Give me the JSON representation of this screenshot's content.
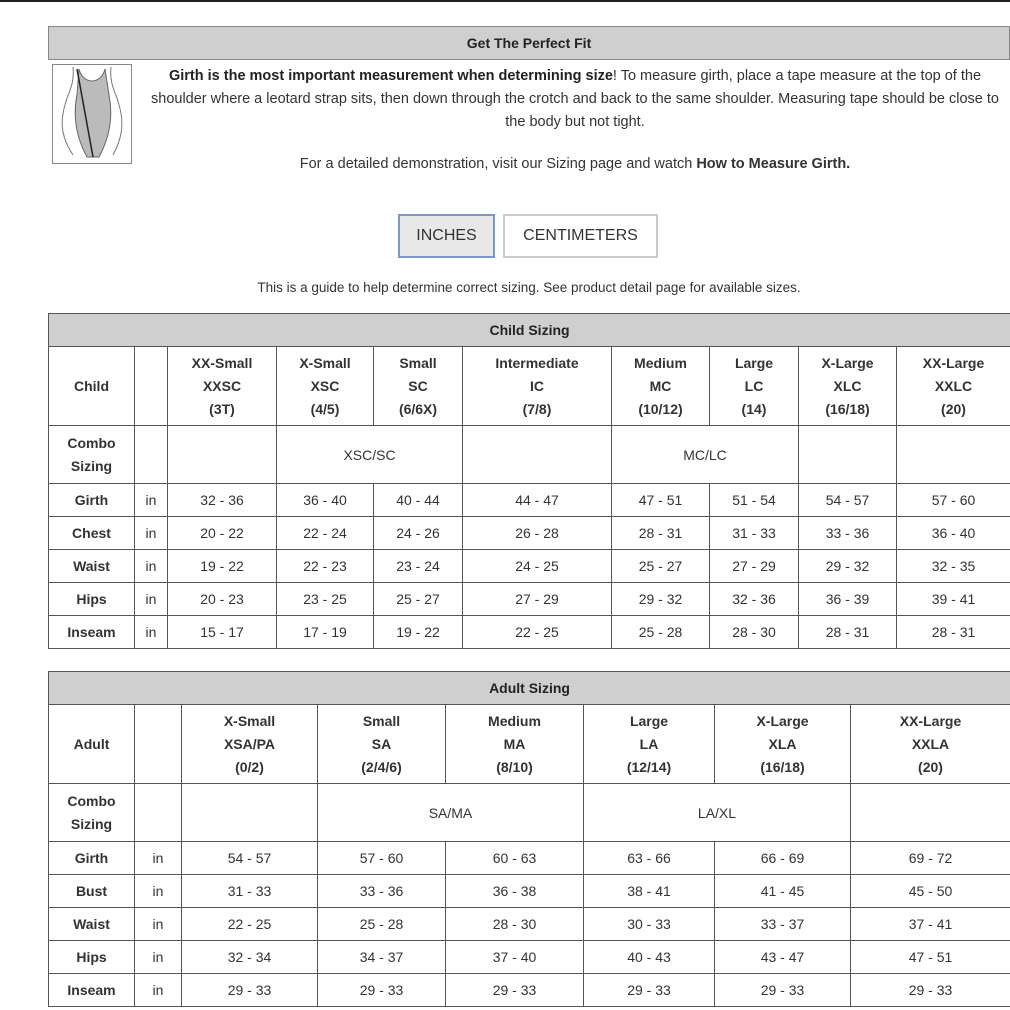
{
  "fit": {
    "title": "Get The Perfect Fit",
    "intro_bold": "Girth is the most important measurement when determining size",
    "intro_rest": "! To measure girth, place a tape measure at the top of the shoulder where a leotard strap sits, then down through the crotch and back to the same shoulder. Measuring tape should be close to the body but not tight.",
    "demo_text": "For a detailed demonstration, visit our Sizing page and watch ",
    "demo_link": "How to Measure Girth."
  },
  "units": {
    "inches": "INCHES",
    "centimeters": "CENTIMETERS",
    "selected": "INCHES"
  },
  "guide": "This is a guide to help determine correct sizing. See product detail page for available sizes.",
  "child": {
    "title": "Child Sizing",
    "corner": "Child",
    "sizes": [
      [
        "XX-Small",
        "XXSC",
        "(3T)"
      ],
      [
        "X-Small",
        "XSC",
        "(4/5)"
      ],
      [
        "Small",
        "SC",
        "(6/6X)"
      ],
      [
        "Intermediate",
        "IC",
        "(7/8)"
      ],
      [
        "Medium",
        "MC",
        "(10/12)"
      ],
      [
        "Large",
        "LC",
        "(14)"
      ],
      [
        "X-Large",
        "XLC",
        "(16/18)"
      ],
      [
        "XX-Large",
        "XXLC",
        "(20)"
      ]
    ],
    "combo_label": [
      "Combo",
      "Sizing"
    ],
    "combo": [
      {
        "text": "",
        "span": 1
      },
      {
        "text": "XSC/SC",
        "span": 2
      },
      {
        "text": "",
        "span": 1
      },
      {
        "text": "MC/LC",
        "span": 2
      },
      {
        "text": "",
        "span": 1
      },
      {
        "text": "",
        "span": 1
      }
    ],
    "rows": [
      {
        "label": "Girth",
        "unit": "in",
        "values": [
          "32 - 36",
          "36 - 40",
          "40 - 44",
          "44 - 47",
          "47 - 51",
          "51 - 54",
          "54 - 57",
          "57 - 60"
        ]
      },
      {
        "label": "Chest",
        "unit": "in",
        "values": [
          "20 - 22",
          "22 - 24",
          "24 - 26",
          "26 - 28",
          "28 - 31",
          "31 - 33",
          "33 - 36",
          "36 - 40"
        ]
      },
      {
        "label": "Waist",
        "unit": "in",
        "values": [
          "19 - 22",
          "22 - 23",
          "23 - 24",
          "24 - 25",
          "25 - 27",
          "27 - 29",
          "29 - 32",
          "32 - 35"
        ]
      },
      {
        "label": "Hips",
        "unit": "in",
        "values": [
          "20 - 23",
          "23 - 25",
          "25 - 27",
          "27 - 29",
          "29 - 32",
          "32 - 36",
          "36 - 39",
          "39 - 41"
        ]
      },
      {
        "label": "Inseam",
        "unit": "in",
        "values": [
          "15 - 17",
          "17 - 19",
          "19 - 22",
          "22 - 25",
          "25 - 28",
          "28 - 30",
          "28 - 31",
          "28 - 31"
        ]
      }
    ]
  },
  "adult": {
    "title": "Adult Sizing",
    "corner": "Adult",
    "sizes": [
      [
        "X-Small",
        "XSA/PA",
        "(0/2)"
      ],
      [
        "Small",
        "SA",
        "(2/4/6)"
      ],
      [
        "Medium",
        "MA",
        "(8/10)"
      ],
      [
        "Large",
        "LA",
        "(12/14)"
      ],
      [
        "X-Large",
        "XLA",
        "(16/18)"
      ],
      [
        "XX-Large",
        "XXLA",
        "(20)"
      ]
    ],
    "combo_label": [
      "Combo",
      "Sizing"
    ],
    "combo": [
      {
        "text": "",
        "span": 1
      },
      {
        "text": "SA/MA",
        "span": 2
      },
      {
        "text": "LA/XL",
        "span": 2
      },
      {
        "text": "",
        "span": 1
      }
    ],
    "rows": [
      {
        "label": "Girth",
        "unit": "in",
        "values": [
          "54 - 57",
          "57 - 60",
          "60 - 63",
          "63 - 66",
          "66 - 69",
          "69 - 72"
        ]
      },
      {
        "label": "Bust",
        "unit": "in",
        "values": [
          "31 - 33",
          "33 - 36",
          "36 - 38",
          "38 - 41",
          "41 - 45",
          "45 - 50"
        ]
      },
      {
        "label": "Waist",
        "unit": "in",
        "values": [
          "22 - 25",
          "25 - 28",
          "28 - 30",
          "30 - 33",
          "33 - 37",
          "37 - 41"
        ]
      },
      {
        "label": "Hips",
        "unit": "in",
        "values": [
          "32 - 34",
          "34 - 37",
          "37 - 40",
          "40 - 43",
          "43 - 47",
          "47 - 51"
        ]
      },
      {
        "label": "Inseam",
        "unit": "in",
        "values": [
          "29 - 33",
          "29 - 33",
          "29 - 33",
          "29 - 33",
          "29 - 33",
          "29 - 33"
        ]
      }
    ]
  }
}
